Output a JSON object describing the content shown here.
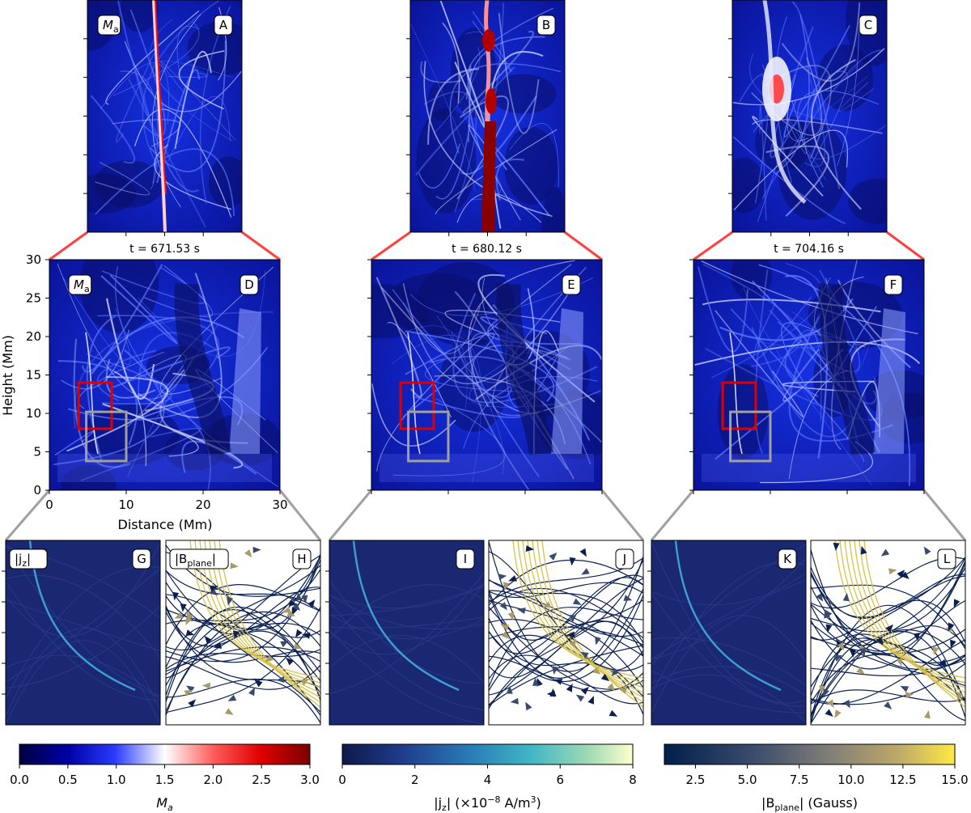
{
  "panels": {
    "top": [
      {
        "letter": "A",
        "var": "M",
        "var_sub": "a"
      },
      {
        "letter": "B"
      },
      {
        "letter": "C"
      }
    ],
    "mid": [
      {
        "letter": "D",
        "time": "t = 671.53 s",
        "var": "M",
        "var_sub": "a"
      },
      {
        "letter": "E",
        "time": "t = 680.12 s"
      },
      {
        "letter": "F",
        "time": "t = 704.16 s"
      }
    ],
    "bottom": [
      {
        "letter": "G",
        "var": "|j",
        "var_sub": "z",
        "var_end": "|"
      },
      {
        "letter": "H",
        "var": "|B",
        "var_sub": "plane",
        "var_end": "|"
      },
      {
        "letter": "I"
      },
      {
        "letter": "J"
      },
      {
        "letter": "K"
      },
      {
        "letter": "L"
      }
    ]
  },
  "axes": {
    "xlabel": "Distance (Mm)",
    "ylabel": "Height (Mm)",
    "xticks": [
      "0",
      "10",
      "20",
      "30"
    ],
    "yticks": [
      "0",
      "5",
      "10",
      "15",
      "20",
      "25",
      "30"
    ],
    "range": [
      0,
      30
    ]
  },
  "colorbars": [
    {
      "label": "M",
      "label_sub": "a",
      "ticks": [
        "0.0",
        "0.5",
        "1.0",
        "1.5",
        "2.0",
        "2.5",
        "3.0"
      ],
      "colors": [
        "#000040",
        "#0000cc",
        "#2a3cff",
        "#ffffff",
        "#ff5050",
        "#e00000",
        "#7a0000"
      ]
    },
    {
      "label_pre": "|j",
      "label_sub": "z",
      "label_mid": "| (×10",
      "label_sup": "−8",
      "label_post": " A/m",
      "label_sup2": "3",
      "label_end": ")",
      "ticks": [
        "0",
        "2",
        "4",
        "6",
        "8"
      ],
      "colors": [
        "#0d1a4a",
        "#1f3a8a",
        "#2a7fb8",
        "#41b6c4",
        "#a1dab4",
        "#ffffcc"
      ]
    },
    {
      "label_pre": "|B",
      "label_sub": "plane",
      "label_post": "| (Gauss)",
      "ticks": [
        "2.5",
        "5.0",
        "7.5",
        "10.0",
        "12.5",
        "15.0"
      ],
      "colors": [
        "#00204c",
        "#3a4a6b",
        "#777777",
        "#a89a6b",
        "#ffe945"
      ]
    }
  ],
  "colors": {
    "zoom_red": "#ff4040",
    "box_red": "#dd0000",
    "box_gray": "#a0a0a0",
    "plasma_bg": "#0a1fa8"
  }
}
